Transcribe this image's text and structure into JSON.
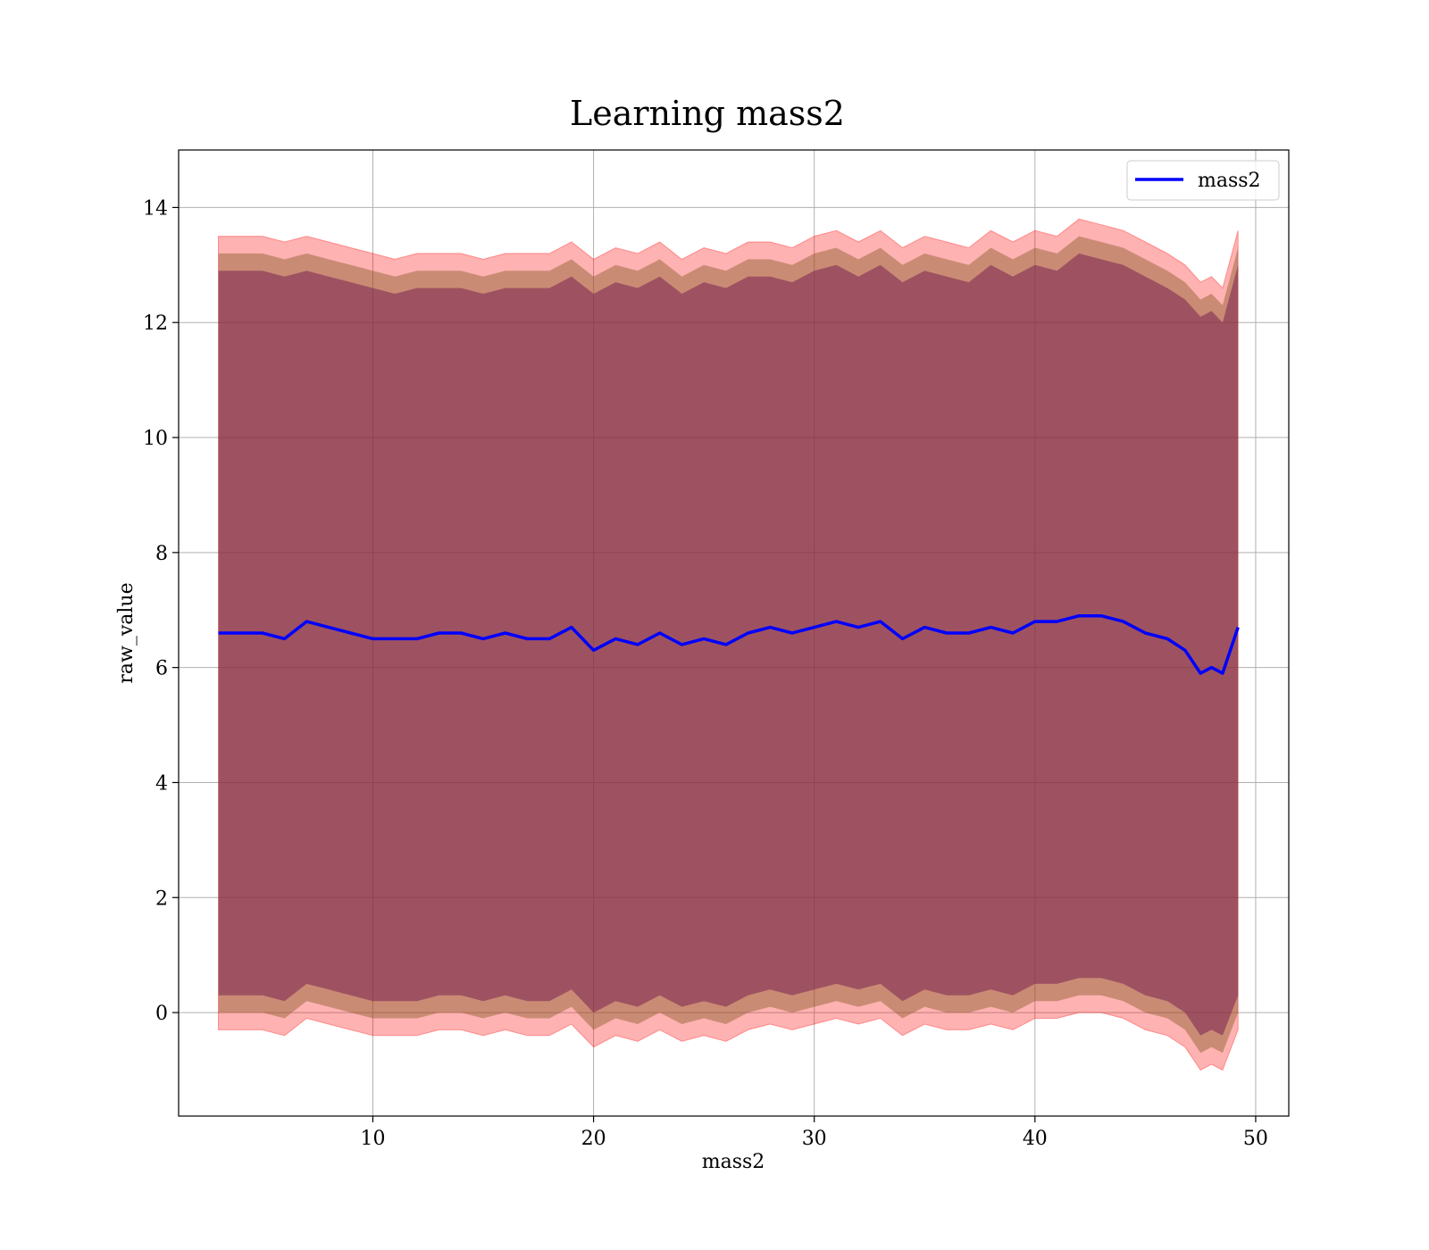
{
  "chart_data": {
    "type": "line",
    "title": "Learning mass2",
    "xlabel": "mass2",
    "ylabel": "raw_value",
    "xlim": [
      1.2,
      51.5
    ],
    "ylim": [
      -1.8,
      15.0
    ],
    "x_ticks": [
      10,
      20,
      30,
      40,
      50
    ],
    "y_ticks": [
      0,
      2,
      4,
      6,
      8,
      10,
      12,
      14
    ],
    "grid": true,
    "legend_position": "top-right",
    "colors": {
      "line": "#0000ff",
      "band_outer": "#ff0000",
      "band_inner": "#7a2450"
    },
    "series": [
      {
        "name": "mass2",
        "x": [
          3.0,
          4.0,
          5.0,
          6.0,
          7.0,
          8.0,
          9.0,
          10.0,
          11.0,
          12.0,
          13.0,
          14.0,
          15.0,
          16.0,
          17.0,
          18.0,
          19.0,
          20.0,
          21.0,
          22.0,
          23.0,
          24.0,
          25.0,
          26.0,
          27.0,
          28.0,
          29.0,
          30.0,
          31.0,
          32.0,
          33.0,
          34.0,
          35.0,
          36.0,
          37.0,
          38.0,
          39.0,
          40.0,
          41.0,
          42.0,
          43.0,
          44.0,
          45.0,
          46.0,
          46.8,
          47.5,
          48.0,
          48.5,
          49.2
        ],
        "values": [
          6.6,
          6.6,
          6.6,
          6.5,
          6.8,
          6.7,
          6.6,
          6.5,
          6.5,
          6.5,
          6.6,
          6.6,
          6.5,
          6.6,
          6.5,
          6.5,
          6.7,
          6.3,
          6.5,
          6.4,
          6.6,
          6.4,
          6.5,
          6.4,
          6.6,
          6.7,
          6.6,
          6.7,
          6.8,
          6.7,
          6.8,
          6.5,
          6.7,
          6.6,
          6.6,
          6.7,
          6.6,
          6.8,
          6.8,
          6.9,
          6.9,
          6.8,
          6.6,
          6.5,
          6.3,
          5.9,
          6.0,
          5.9,
          6.7
        ],
        "outer_upper": [
          13.5,
          13.5,
          13.5,
          13.4,
          13.5,
          13.4,
          13.3,
          13.2,
          13.1,
          13.2,
          13.2,
          13.2,
          13.1,
          13.2,
          13.2,
          13.2,
          13.4,
          13.1,
          13.3,
          13.2,
          13.4,
          13.1,
          13.3,
          13.2,
          13.4,
          13.4,
          13.3,
          13.5,
          13.6,
          13.4,
          13.6,
          13.3,
          13.5,
          13.4,
          13.3,
          13.6,
          13.4,
          13.6,
          13.5,
          13.8,
          13.7,
          13.6,
          13.4,
          13.2,
          13.0,
          12.7,
          12.8,
          12.6,
          13.6
        ],
        "inner_upper": [
          13.2,
          13.2,
          13.2,
          13.1,
          13.2,
          13.1,
          13.0,
          12.9,
          12.8,
          12.9,
          12.9,
          12.9,
          12.8,
          12.9,
          12.9,
          12.9,
          13.1,
          12.8,
          13.0,
          12.9,
          13.1,
          12.8,
          13.0,
          12.9,
          13.1,
          13.1,
          13.0,
          13.2,
          13.3,
          13.1,
          13.3,
          13.0,
          13.2,
          13.1,
          13.0,
          13.3,
          13.1,
          13.3,
          13.2,
          13.5,
          13.4,
          13.3,
          13.1,
          12.9,
          12.7,
          12.4,
          12.5,
          12.3,
          13.3
        ],
        "body_upper": [
          12.9,
          12.9,
          12.9,
          12.8,
          12.9,
          12.8,
          12.7,
          12.6,
          12.5,
          12.6,
          12.6,
          12.6,
          12.5,
          12.6,
          12.6,
          12.6,
          12.8,
          12.5,
          12.7,
          12.6,
          12.8,
          12.5,
          12.7,
          12.6,
          12.8,
          12.8,
          12.7,
          12.9,
          13.0,
          12.8,
          13.0,
          12.7,
          12.9,
          12.8,
          12.7,
          13.0,
          12.8,
          13.0,
          12.9,
          13.2,
          13.1,
          13.0,
          12.8,
          12.6,
          12.4,
          12.1,
          12.2,
          12.0,
          13.0
        ],
        "body_lower": [
          0.3,
          0.3,
          0.3,
          0.2,
          0.5,
          0.4,
          0.3,
          0.2,
          0.2,
          0.2,
          0.3,
          0.3,
          0.2,
          0.3,
          0.2,
          0.2,
          0.4,
          0.0,
          0.2,
          0.1,
          0.3,
          0.1,
          0.2,
          0.1,
          0.3,
          0.4,
          0.3,
          0.4,
          0.5,
          0.4,
          0.5,
          0.2,
          0.4,
          0.3,
          0.3,
          0.4,
          0.3,
          0.5,
          0.5,
          0.6,
          0.6,
          0.5,
          0.3,
          0.2,
          0.0,
          -0.4,
          -0.3,
          -0.4,
          0.3
        ],
        "inner_lower": [
          0.0,
          0.0,
          0.0,
          -0.1,
          0.2,
          0.1,
          0.0,
          -0.1,
          -0.1,
          -0.1,
          0.0,
          0.0,
          -0.1,
          0.0,
          -0.1,
          -0.1,
          0.1,
          -0.3,
          -0.1,
          -0.2,
          0.0,
          -0.2,
          -0.1,
          -0.2,
          0.0,
          0.1,
          0.0,
          0.1,
          0.2,
          0.1,
          0.2,
          -0.1,
          0.1,
          0.0,
          0.0,
          0.1,
          0.0,
          0.2,
          0.2,
          0.3,
          0.3,
          0.2,
          0.0,
          -0.1,
          -0.3,
          -0.7,
          -0.6,
          -0.7,
          0.0
        ],
        "outer_lower": [
          -0.3,
          -0.3,
          -0.3,
          -0.4,
          -0.1,
          -0.2,
          -0.3,
          -0.4,
          -0.4,
          -0.4,
          -0.3,
          -0.3,
          -0.4,
          -0.3,
          -0.4,
          -0.4,
          -0.2,
          -0.6,
          -0.4,
          -0.5,
          -0.3,
          -0.5,
          -0.4,
          -0.5,
          -0.3,
          -0.2,
          -0.3,
          -0.2,
          -0.1,
          -0.2,
          -0.1,
          -0.4,
          -0.2,
          -0.3,
          -0.3,
          -0.2,
          -0.3,
          -0.1,
          -0.1,
          0.0,
          0.0,
          -0.1,
          -0.3,
          -0.4,
          -0.6,
          -1.0,
          -0.9,
          -1.0,
          -0.3
        ]
      }
    ]
  }
}
